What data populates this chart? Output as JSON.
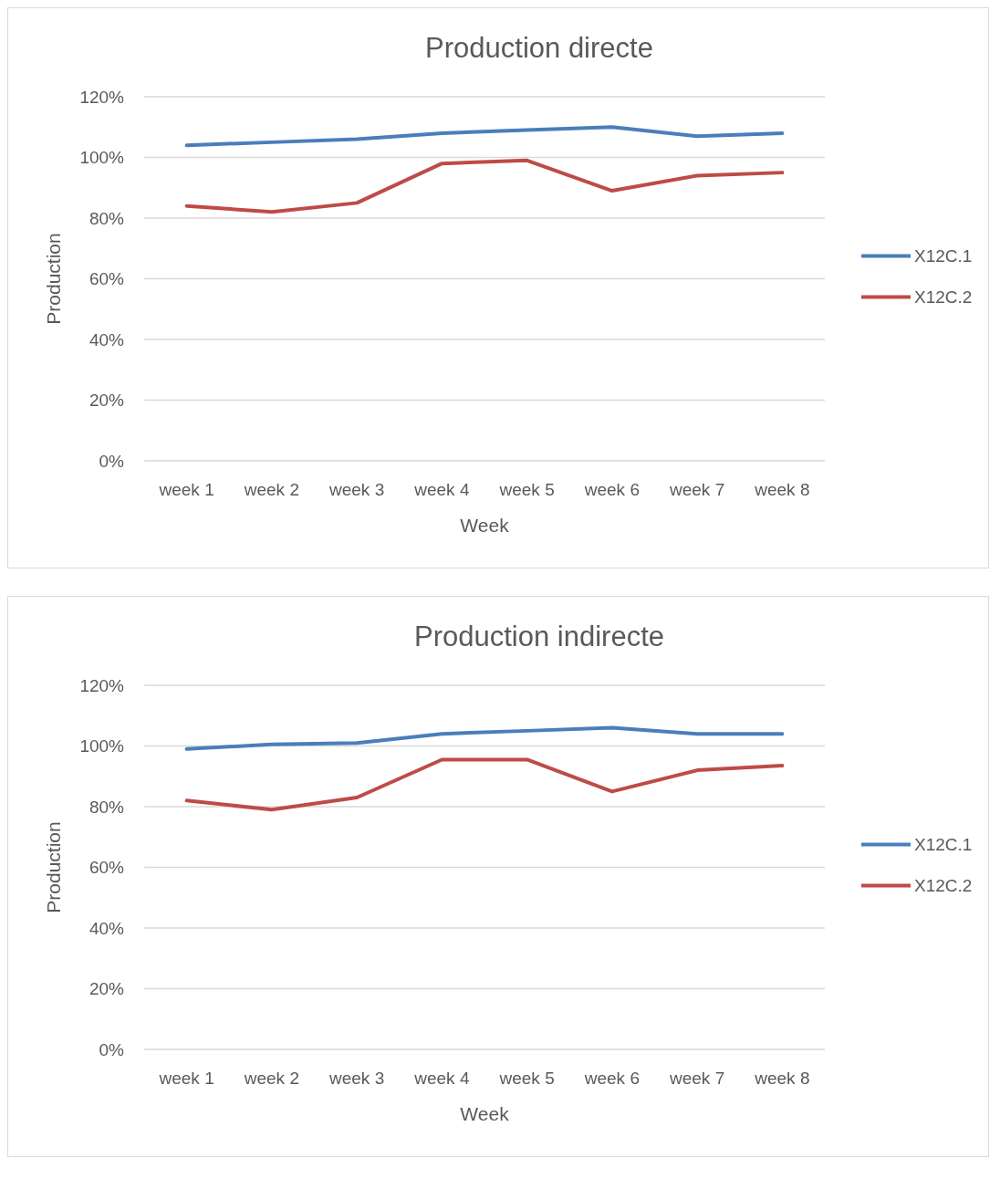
{
  "chart_data": [
    {
      "type": "line",
      "title": "Production directe",
      "xlabel": "Week",
      "ylabel": "Production",
      "categories": [
        "week 1",
        "week 2",
        "week 3",
        "week 4",
        "week 5",
        "week 6",
        "week 7",
        "week 8"
      ],
      "series": [
        {
          "name": "X12C.1",
          "color": "#4a7ebb",
          "values": [
            104,
            105,
            106,
            108,
            109,
            110,
            107,
            108
          ]
        },
        {
          "name": "X12C.2",
          "color": "#be4b48",
          "values": [
            84,
            82,
            85,
            98,
            99,
            89,
            94,
            95
          ]
        }
      ],
      "ylim": [
        0,
        120
      ],
      "yticks": [
        {
          "value": 0,
          "label": "0%"
        },
        {
          "value": 20,
          "label": "20%"
        },
        {
          "value": 40,
          "label": "40%"
        },
        {
          "value": 60,
          "label": "60%"
        },
        {
          "value": 80,
          "label": "80%"
        },
        {
          "value": 100,
          "label": "100%"
        },
        {
          "value": 120,
          "label": "120%"
        }
      ],
      "grid": "y",
      "legend": "right",
      "marker": "none",
      "line_style": "solid"
    },
    {
      "type": "line",
      "title": "Production indirecte",
      "xlabel": "Week",
      "ylabel": "Production",
      "categories": [
        "week 1",
        "week 2",
        "week 3",
        "week 4",
        "week 5",
        "week 6",
        "week 7",
        "week 8"
      ],
      "series": [
        {
          "name": "X12C.1",
          "color": "#4a7ebb",
          "values": [
            99,
            100.5,
            101,
            104,
            105,
            106,
            104,
            104
          ]
        },
        {
          "name": "X12C.2",
          "color": "#be4b48",
          "values": [
            82,
            79,
            83,
            95.5,
            95.5,
            85,
            92,
            93.5
          ]
        }
      ],
      "ylim": [
        0,
        120
      ],
      "yticks": [
        {
          "value": 0,
          "label": "0%"
        },
        {
          "value": 20,
          "label": "20%"
        },
        {
          "value": 40,
          "label": "40%"
        },
        {
          "value": 60,
          "label": "60%"
        },
        {
          "value": 80,
          "label": "80%"
        },
        {
          "value": 100,
          "label": "100%"
        },
        {
          "value": 120,
          "label": "120%"
        }
      ],
      "grid": "y",
      "legend": "right",
      "marker": "none",
      "line_style": "solid"
    }
  ]
}
